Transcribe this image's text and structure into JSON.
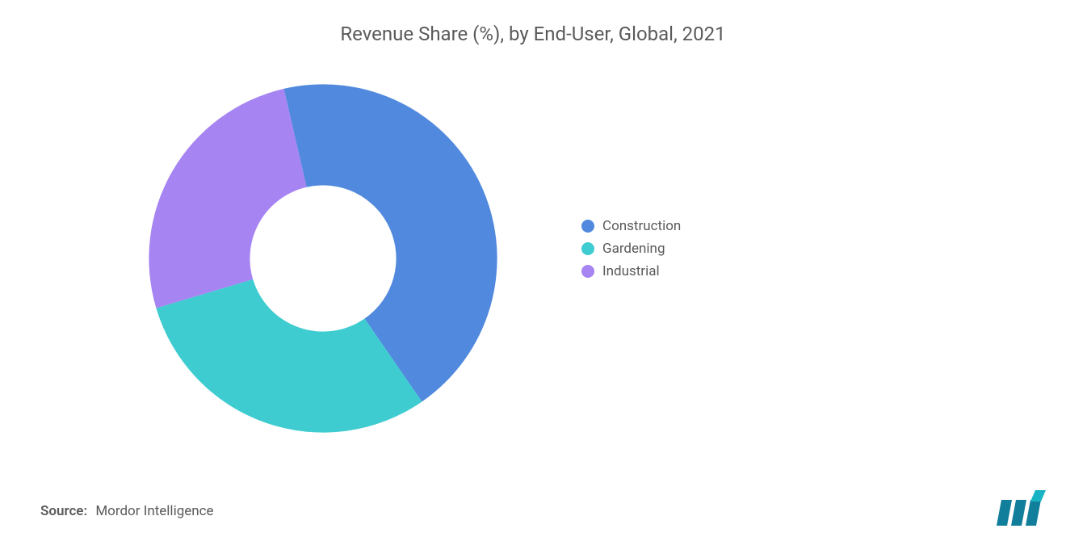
{
  "title": "Revenue Share (%), by End-User, Global, 2021",
  "chart": {
    "type": "donut",
    "inner_radius_ratio": 0.42,
    "start_angle_deg": -103,
    "background_color": "#ffffff",
    "slices": [
      {
        "label": "Construction",
        "value": 44,
        "color": "#5089dd"
      },
      {
        "label": "Gardening",
        "value": 30,
        "color": "#3fccd1"
      },
      {
        "label": "Industrial",
        "value": 26,
        "color": "#a684f2"
      }
    ],
    "title_fontsize": 24,
    "title_color": "#5a5a5a",
    "legend_fontsize": 17,
    "legend_text_color": "#5a5a5a"
  },
  "source": {
    "label": "Source:",
    "text": "Mordor Intelligence"
  },
  "logo": {
    "bar_color": "#117e9b",
    "accent_color": "#19b4c4"
  }
}
